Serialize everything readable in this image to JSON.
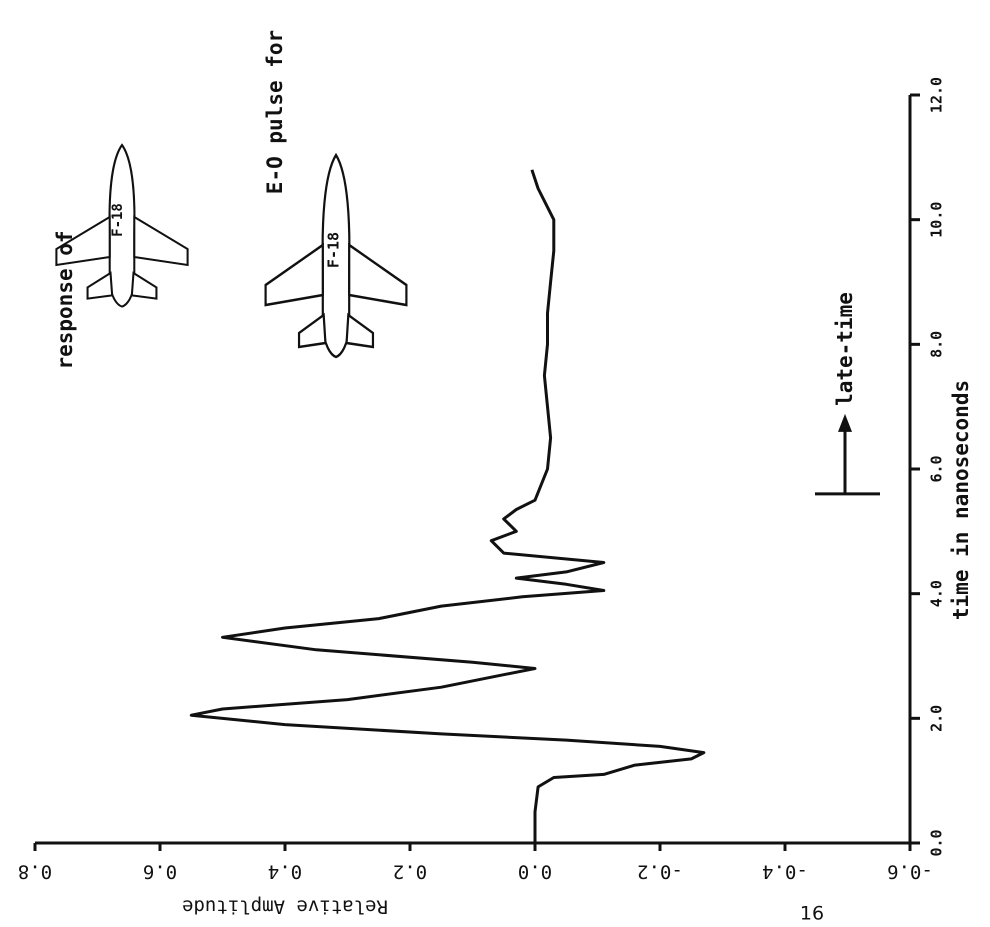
{
  "chart_data": {
    "type": "line",
    "x_label": "time in nanoseconds",
    "y_label": "Relative Amplitude",
    "annotations": [
      "response of",
      "E-O pulse for",
      "late-time",
      "F-18",
      "F-18"
    ],
    "x": [
      0,
      0.5,
      0.9,
      1.05,
      1.1,
      1.25,
      1.35,
      1.45,
      1.55,
      1.65,
      1.75,
      1.9,
      2.05,
      2.15,
      2.3,
      2.5,
      2.7,
      2.8,
      2.9,
      3.1,
      3.3,
      3.45,
      3.6,
      3.8,
      3.95,
      4.05,
      4.15,
      4.25,
      4.35,
      4.5,
      4.65,
      4.85,
      5.0,
      5.2,
      5.35,
      5.5,
      6,
      6.5,
      7,
      7.5,
      8,
      8.5,
      9,
      9.5,
      10,
      10.5,
      10.8
    ],
    "values": [
      0,
      0,
      -0.005,
      -0.03,
      -0.11,
      -0.16,
      -0.25,
      -0.27,
      -0.2,
      -0.05,
      0.15,
      0.4,
      0.55,
      0.5,
      0.3,
      0.15,
      0.05,
      0.0,
      0.1,
      0.35,
      0.5,
      0.4,
      0.25,
      0.15,
      0.02,
      -0.11,
      -0.05,
      0.03,
      -0.05,
      -0.11,
      0.05,
      0.07,
      0.03,
      0.05,
      0.03,
      0.0,
      -0.02,
      -0.025,
      -0.02,
      -0.015,
      -0.02,
      -0.02,
      -0.025,
      -0.03,
      -0.03,
      -0.005,
      0.005
    ],
    "color": "#111111",
    "xlim": [
      0,
      12
    ],
    "xticks": [
      {
        "value": 0,
        "label": "0.0"
      },
      {
        "value": 2,
        "label": "2.0"
      },
      {
        "value": 4,
        "label": "4.0"
      },
      {
        "value": 6,
        "label": "6.0"
      },
      {
        "value": 8,
        "label": "8.0"
      },
      {
        "value": 10,
        "label": "10.0"
      },
      {
        "value": 12,
        "label": "12.0"
      }
    ],
    "ylim": [
      -0.6,
      0.8
    ],
    "yticks": [
      0.8,
      0.6,
      0.4,
      0.2,
      {
        "value": 0,
        "label": "0.0"
      },
      -0.2,
      -0.4,
      -0.6
    ],
    "late_time_start": 5.6,
    "grid": false
  },
  "page_number": "16"
}
